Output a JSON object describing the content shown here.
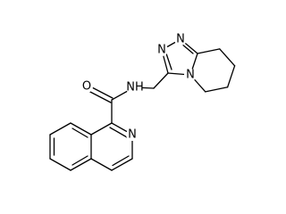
{
  "atom_labels": {
    "oxygen": "O",
    "amide_nitrogen": "NH",
    "isoquinoline_nitrogen": "N",
    "triazole_nitrogen_2": "N",
    "triazole_nitrogen_1": "N",
    "bridge_nitrogen": "N"
  }
}
